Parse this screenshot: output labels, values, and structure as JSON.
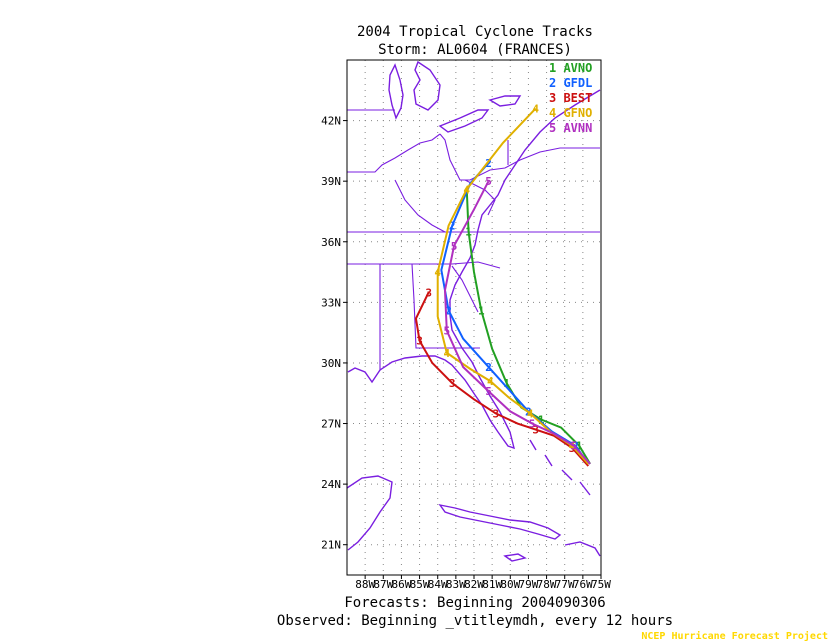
{
  "chart_data": {
    "type": "line",
    "title": "2004 Tropical Cyclone Tracks",
    "subtitle": "Storm: AL0604 (FRANCES)",
    "footer_line1": "Forecasts: Beginning 2004090306",
    "footer_line2": "Observed: Beginning _vtitleymdh, every 12 hours",
    "credit": "NCEP Hurricane Forecast Project",
    "xlim": [
      -89,
      -75
    ],
    "ylim": [
      19.5,
      45
    ],
    "x_ticks": [
      -88,
      -87,
      -86,
      -85,
      -84,
      -83,
      -82,
      -81,
      -80,
      -79,
      -78,
      -77,
      -76,
      -75
    ],
    "x_tick_labels": [
      "88W",
      "87W",
      "86W",
      "85W",
      "84W",
      "83W",
      "82W",
      "81W",
      "80W",
      "79W",
      "78W",
      "77W",
      "76W",
      "75W"
    ],
    "y_ticks": [
      21,
      24,
      27,
      30,
      33,
      36,
      39,
      42
    ],
    "y_tick_labels": [
      "21N",
      "24N",
      "27N",
      "30N",
      "33N",
      "36N",
      "39N",
      "42N"
    ],
    "grid": true,
    "legend_position": "top-right",
    "series": [
      {
        "name": "AVNO",
        "num": "1",
        "color": "#22a022",
        "lon": [
          -75.6,
          -76.2,
          -77.2,
          -78.3,
          -79.4,
          -80.2,
          -81.0,
          -81.6,
          -82.0,
          -82.3,
          -82.4
        ],
        "lat": [
          25.0,
          25.9,
          26.8,
          27.2,
          27.8,
          29.0,
          30.7,
          32.6,
          34.5,
          36.5,
          38.6
        ]
      },
      {
        "name": "GFDL",
        "num": "2",
        "color": "#1060ff",
        "lon": [
          -75.7,
          -76.4,
          -77.7,
          -79.0,
          -80.0,
          -81.2,
          -82.6,
          -83.4,
          -83.8,
          -83.2,
          -82.2,
          -81.2
        ],
        "lat": [
          25.0,
          25.9,
          26.6,
          27.6,
          28.6,
          29.8,
          31.2,
          32.6,
          34.6,
          36.8,
          38.9,
          39.9
        ]
      },
      {
        "name": "BEST",
        "num": "3",
        "color": "#cc1010",
        "lon": [
          -75.7,
          -76.6,
          -77.6,
          -78.6,
          -79.6,
          -80.8,
          -82.0,
          -83.2,
          -84.3,
          -85.0,
          -85.2,
          -84.5
        ],
        "lat": [
          24.9,
          25.8,
          26.4,
          26.7,
          27.0,
          27.5,
          28.2,
          29.0,
          30.0,
          31.1,
          32.2,
          33.5
        ]
      },
      {
        "name": "GFNO",
        "num": "4",
        "color": "#e0b000",
        "lon": [
          -75.7,
          -76.6,
          -77.8,
          -78.9,
          -80.1,
          -81.1,
          -82.2,
          -83.5,
          -84.0,
          -84.0,
          -83.4,
          -82.4,
          -80.4,
          -78.6
        ],
        "lat": [
          25.0,
          25.9,
          26.6,
          27.5,
          28.3,
          29.1,
          29.7,
          30.5,
          32.3,
          34.5,
          36.8,
          38.6,
          40.9,
          42.6
        ]
      },
      {
        "name": "AVNN",
        "num": "5",
        "color": "#b030c0",
        "lon": [
          -75.6,
          -76.5,
          -77.6,
          -78.8,
          -80.0,
          -81.2,
          -82.6,
          -83.5,
          -83.6,
          -83.1,
          -82.0,
          -81.2
        ],
        "lat": [
          25.0,
          25.9,
          26.5,
          27.0,
          27.6,
          28.6,
          29.8,
          31.6,
          33.6,
          35.8,
          37.6,
          39.0
        ]
      }
    ]
  }
}
